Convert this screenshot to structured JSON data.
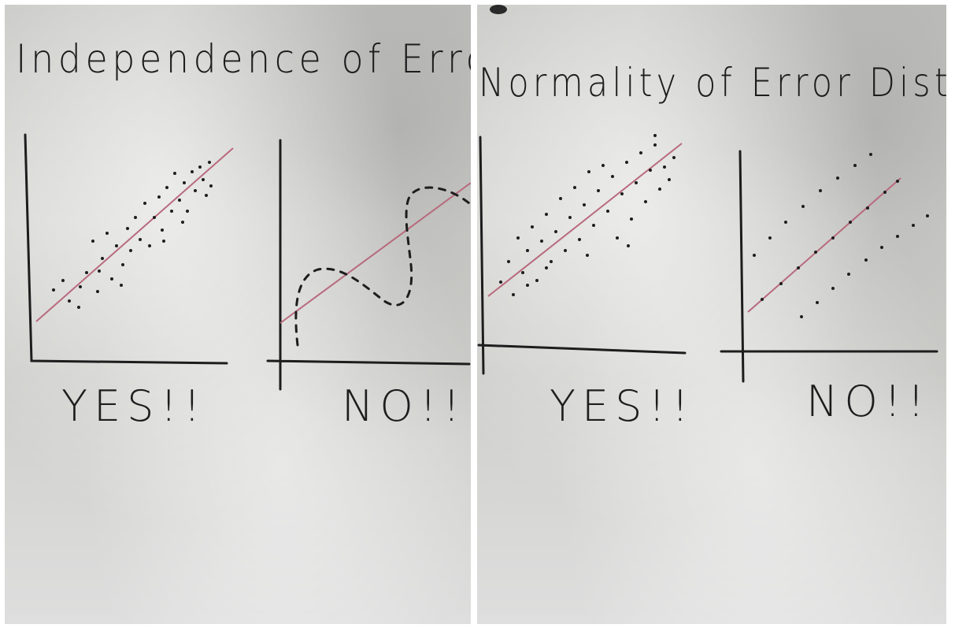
{
  "panels": [
    {
      "title": "Independence of Errors",
      "left_plot_label": "YES!!",
      "right_plot_label": "NO!!"
    },
    {
      "title": "Normality of Error Distributio",
      "left_plot_label": "YES!!",
      "right_plot_label": "NO!!"
    }
  ],
  "colors": {
    "marker": "#1d1d1d",
    "fit_line": "#b86a7c",
    "board": "#d2d2cf"
  }
}
